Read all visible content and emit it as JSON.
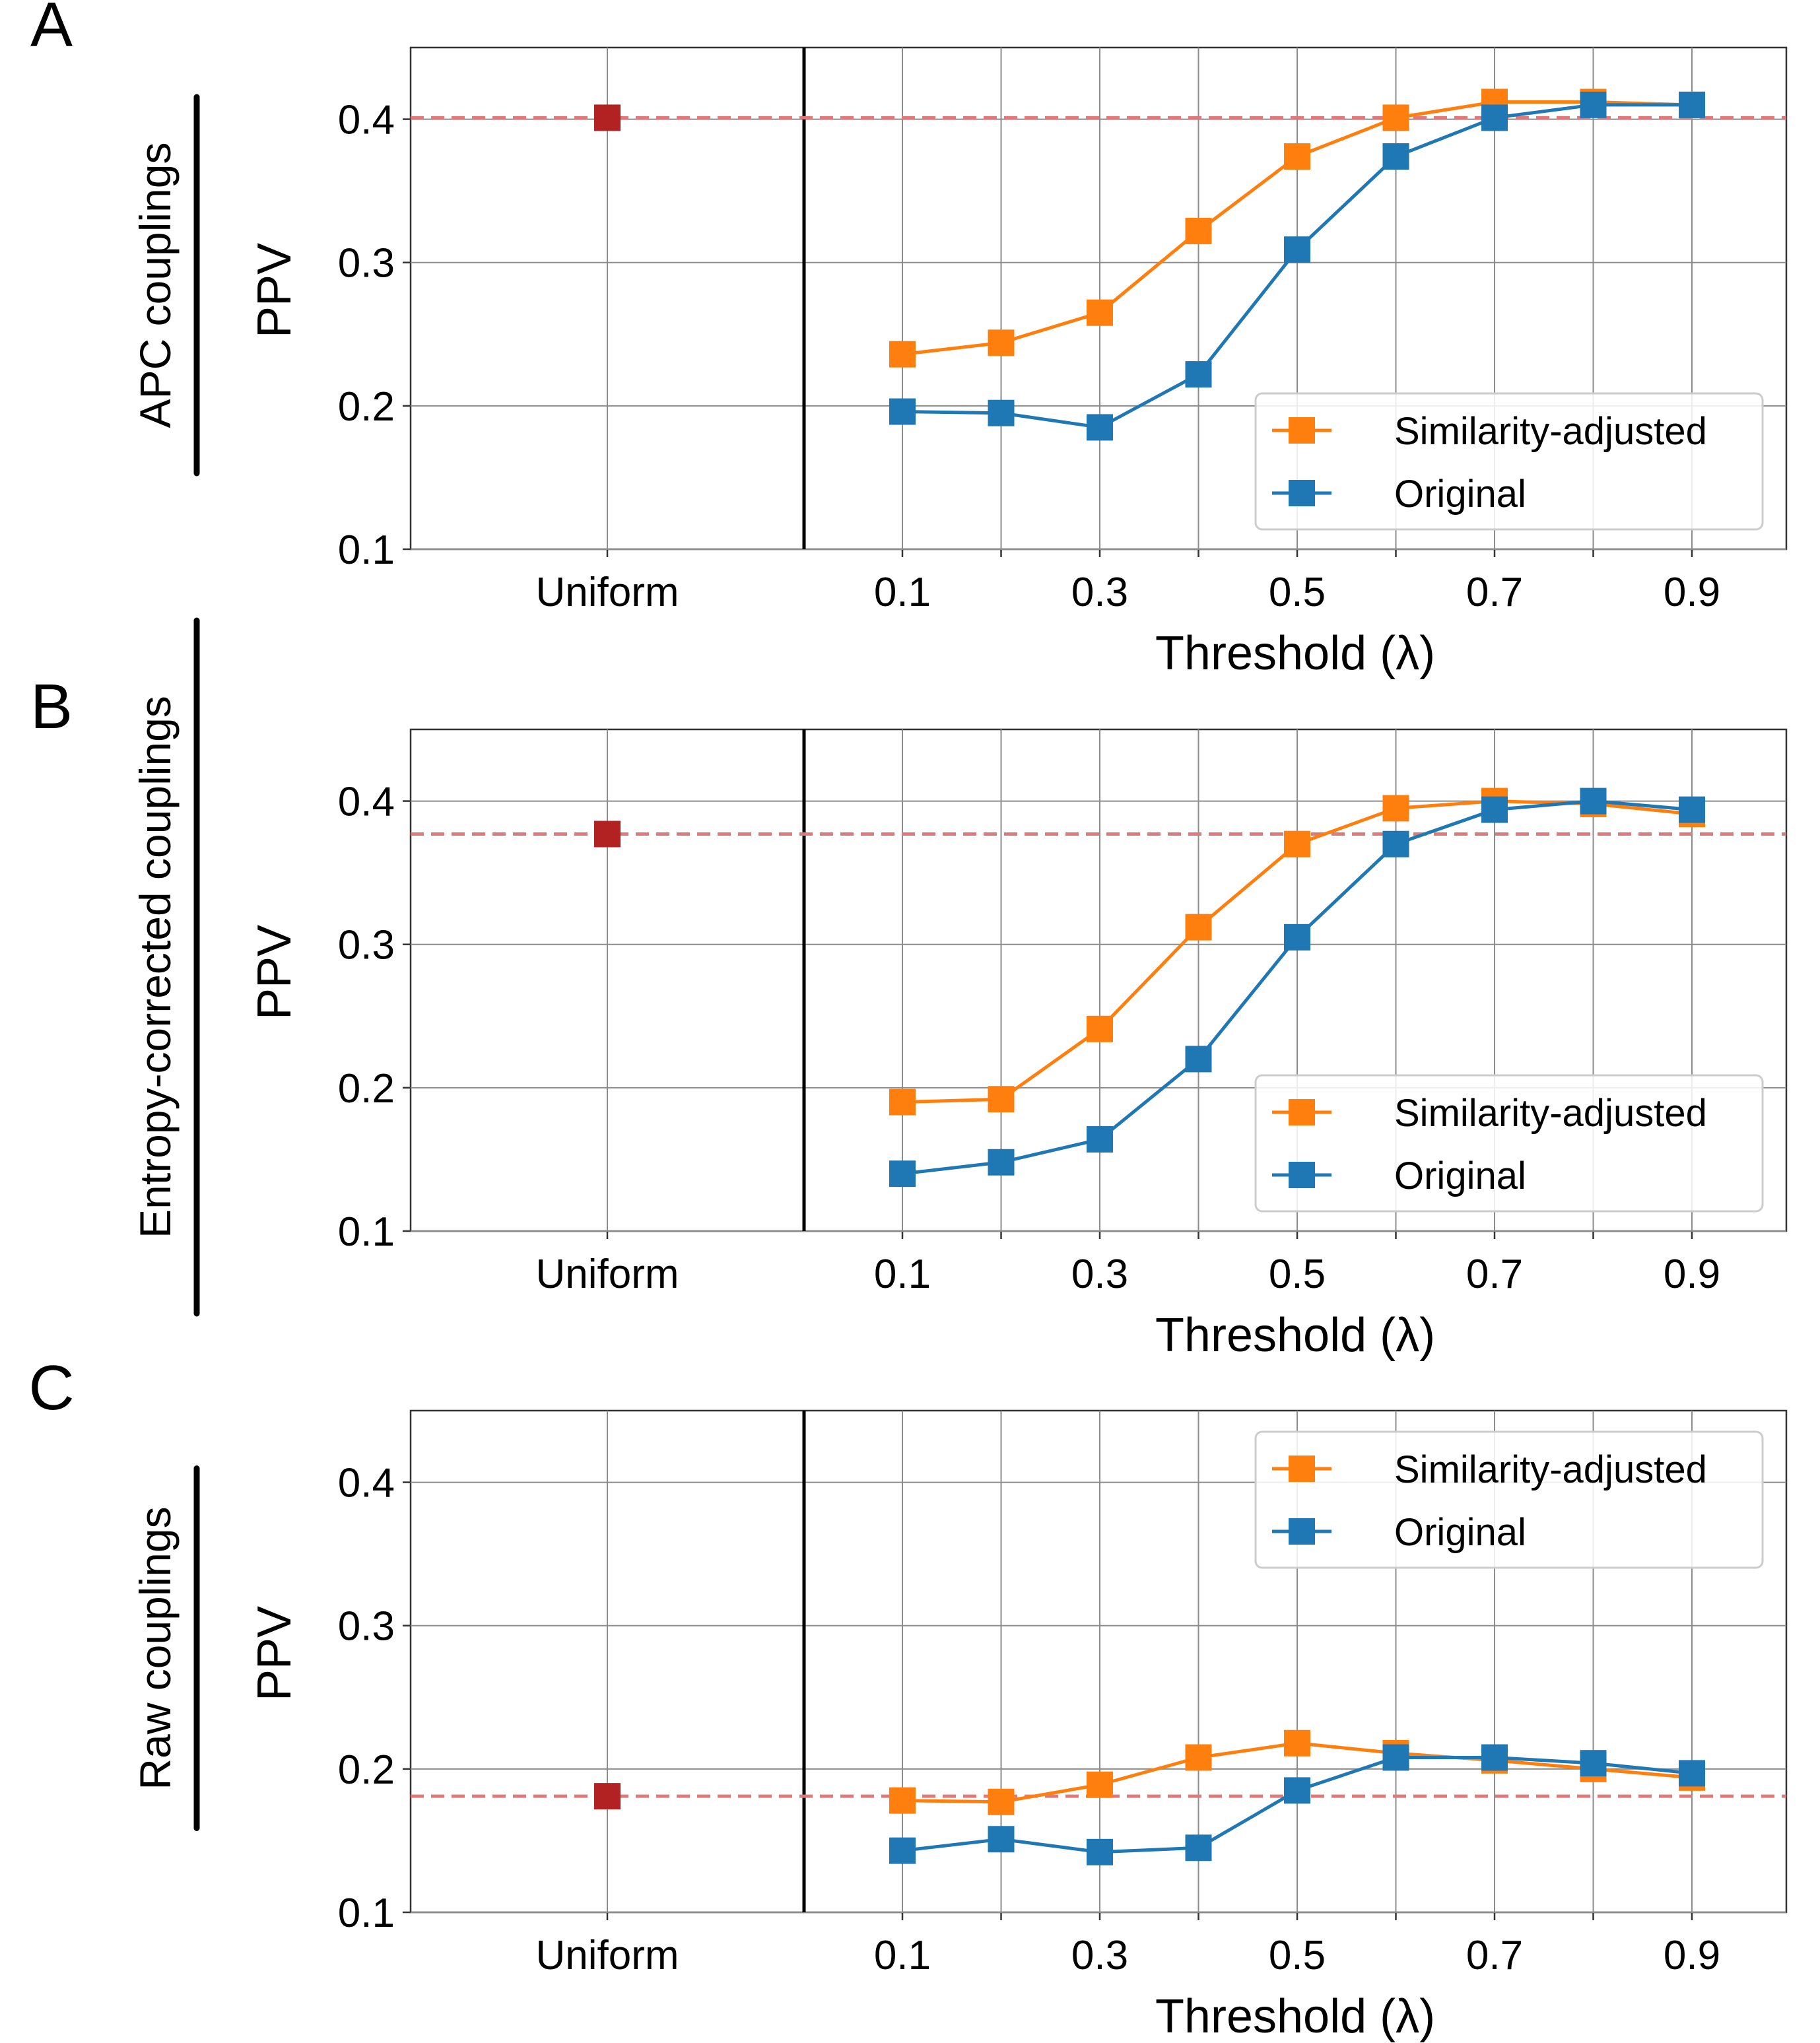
{
  "figure": {
    "uniform_label": "Uniform",
    "colors": {
      "similarity_adjusted": "#ff7f0e",
      "original": "#1f77b4",
      "uniform": "#b22222",
      "reference_line": "#e07a7a"
    }
  },
  "chart_data": [
    {
      "type": "line",
      "panel": "A",
      "row_title": "APC couplings",
      "ylabel": "PPV",
      "xlabel": "Threshold (λ)",
      "ylim": [
        0.1,
        0.45
      ],
      "yticks": [
        "0.1",
        "0.2",
        "0.3",
        "0.4"
      ],
      "x": [
        0.1,
        0.2,
        0.3,
        0.4,
        0.5,
        0.6,
        0.7,
        0.8,
        0.9
      ],
      "xticks": [
        "0.1",
        "0.3",
        "0.5",
        "0.7",
        "0.9"
      ],
      "legend_position": "bottom-right",
      "series": [
        {
          "name": "Similarity-adjusted",
          "values": [
            0.236,
            0.244,
            0.265,
            0.322,
            0.374,
            0.401,
            0.412,
            0.412,
            0.41
          ]
        },
        {
          "name": "Original",
          "values": [
            0.196,
            0.195,
            0.185,
            0.222,
            0.309,
            0.374,
            0.401,
            0.41,
            0.41
          ]
        }
      ],
      "uniform": 0.401
    },
    {
      "type": "line",
      "panel": "B",
      "row_title": "Entropy-corrected couplings",
      "ylabel": "PPV",
      "xlabel": "Threshold (λ)",
      "ylim": [
        0.1,
        0.45
      ],
      "yticks": [
        "0.1",
        "0.2",
        "0.3",
        "0.4"
      ],
      "x": [
        0.1,
        0.2,
        0.3,
        0.4,
        0.5,
        0.6,
        0.7,
        0.8,
        0.9
      ],
      "xticks": [
        "0.1",
        "0.3",
        "0.5",
        "0.7",
        "0.9"
      ],
      "legend_position": "bottom-right",
      "series": [
        {
          "name": "Similarity-adjusted",
          "values": [
            0.19,
            0.192,
            0.241,
            0.312,
            0.37,
            0.395,
            0.4,
            0.398,
            0.391
          ]
        },
        {
          "name": "Original",
          "values": [
            0.14,
            0.148,
            0.164,
            0.22,
            0.305,
            0.37,
            0.394,
            0.4,
            0.394
          ]
        }
      ],
      "uniform": 0.377
    },
    {
      "type": "line",
      "panel": "C",
      "row_title": "Raw couplings",
      "ylabel": "PPV",
      "xlabel": "Threshold (λ)",
      "ylim": [
        0.1,
        0.45
      ],
      "yticks": [
        "0.1",
        "0.2",
        "0.3",
        "0.4"
      ],
      "x": [
        0.1,
        0.2,
        0.3,
        0.4,
        0.5,
        0.6,
        0.7,
        0.8,
        0.9
      ],
      "xticks": [
        "0.1",
        "0.3",
        "0.5",
        "0.7",
        "0.9"
      ],
      "legend_position": "top-right",
      "series": [
        {
          "name": "Similarity-adjusted",
          "values": [
            0.178,
            0.177,
            0.189,
            0.208,
            0.218,
            0.211,
            0.206,
            0.2,
            0.194
          ]
        },
        {
          "name": "Original",
          "values": [
            0.143,
            0.151,
            0.142,
            0.145,
            0.185,
            0.208,
            0.208,
            0.204,
            0.197
          ]
        }
      ],
      "uniform": 0.181
    }
  ]
}
